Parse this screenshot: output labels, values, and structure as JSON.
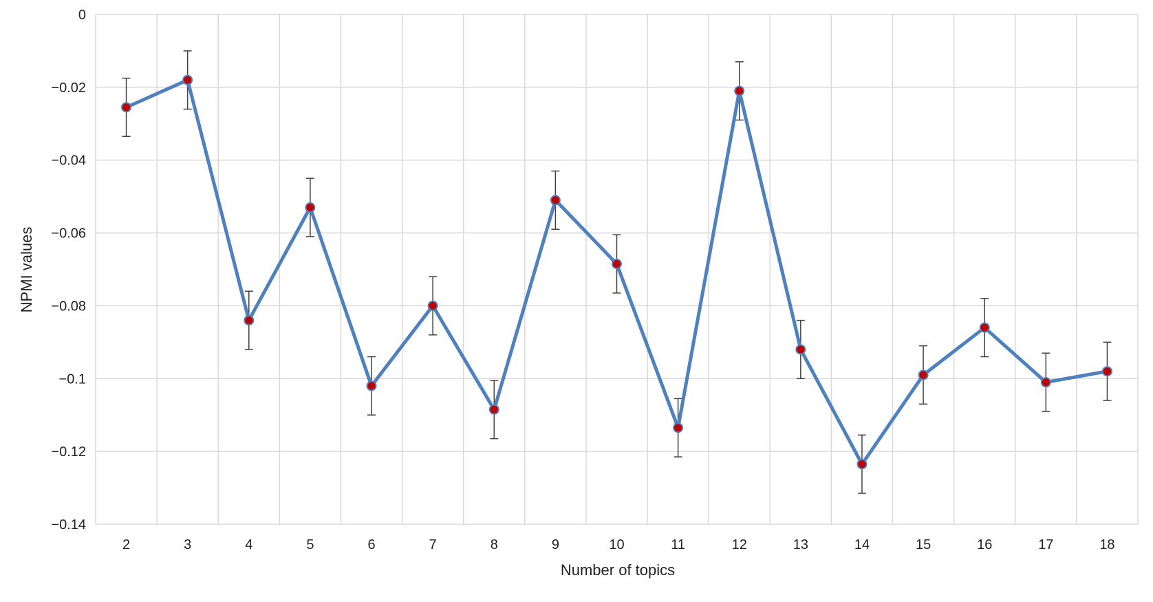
{
  "chart_data": {
    "type": "line",
    "title": "",
    "xlabel": "Number of topics",
    "ylabel": "NPMI values",
    "categories": [
      "2",
      "3",
      "4",
      "5",
      "6",
      "7",
      "8",
      "9",
      "10",
      "11",
      "12",
      "13",
      "14",
      "15",
      "16",
      "17",
      "18"
    ],
    "series": [
      {
        "values": [
          -0.0255,
          -0.018,
          -0.084,
          -0.053,
          -0.102,
          -0.08,
          -0.1085,
          -0.051,
          -0.0685,
          -0.1135,
          -0.021,
          -0.092,
          -0.1235,
          -0.099,
          -0.086,
          -0.101,
          -0.098
        ],
        "errors": [
          0.008,
          0.008,
          0.008,
          0.008,
          0.008,
          0.008,
          0.008,
          0.008,
          0.008,
          0.008,
          0.008,
          0.008,
          0.008,
          0.008,
          0.008,
          0.008,
          0.008
        ]
      }
    ],
    "ylim": [
      -0.14,
      0
    ],
    "yticks": [
      0,
      -0.02,
      -0.04,
      -0.06,
      -0.08,
      -0.1,
      -0.12,
      -0.14
    ],
    "ytick_labels": [
      "0",
      "−0.02",
      "−0.04",
      "−0.06",
      "−0.08",
      "−0.1",
      "−0.12",
      "−0.14"
    ],
    "grid": true,
    "colors": {
      "line": "#4f81bd",
      "marker_fill": "#c00000",
      "error_bar": "#404040",
      "grid": "#d9d9d9"
    }
  }
}
